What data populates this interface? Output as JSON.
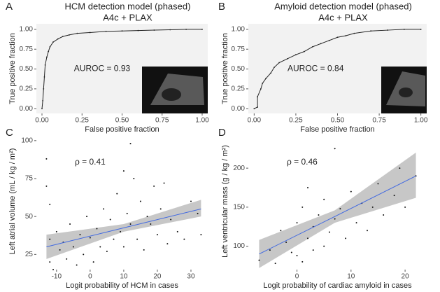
{
  "chart_data": [
    {
      "type": "line",
      "panel_label": "A",
      "title": "HCM detection model (phased)",
      "subtitle": "A4c + PLAX",
      "annotation": "AUROC = 0.93",
      "x_label": "False positive fraction",
      "y_label": "True positive fraction",
      "color": "#222222",
      "xlim": [
        -0.035,
        1.035
      ],
      "ylim": [
        -0.06,
        1.07
      ],
      "xticks": [
        {
          "value": 0,
          "label": "0.00"
        },
        {
          "value": 0.25,
          "label": "0.25"
        },
        {
          "value": 0.5,
          "label": "0.50"
        },
        {
          "value": 0.75,
          "label": "0.75"
        },
        {
          "value": 1,
          "label": "1.00"
        }
      ],
      "yticks": [
        {
          "value": 0,
          "label": "0.00"
        },
        {
          "value": 0.25,
          "label": "0.25"
        },
        {
          "value": 0.5,
          "label": "0.50"
        },
        {
          "value": 0.75,
          "label": "0.75"
        },
        {
          "value": 1,
          "label": "1.00"
        }
      ],
      "x": [
        0,
        0.005,
        0.01,
        0.015,
        0.02,
        0.03,
        0.04,
        0.05,
        0.07,
        0.1,
        0.13,
        0.17,
        0.22,
        0.3,
        0.4,
        0.5,
        0.6,
        0.7,
        0.8,
        0.9,
        1.0
      ],
      "values": [
        0,
        0.1,
        0.25,
        0.4,
        0.55,
        0.65,
        0.72,
        0.78,
        0.84,
        0.88,
        0.91,
        0.93,
        0.95,
        0.96,
        0.975,
        0.98,
        0.985,
        0.99,
        0.995,
        1,
        1
      ]
    },
    {
      "type": "line",
      "panel_label": "B",
      "title": "Amyloid detection model (phased)",
      "subtitle": "A4c + PLAX",
      "annotation": "AUROC = 0.84",
      "x_label": "False positive fraction",
      "y_label": "True positive fraction",
      "color": "#222222",
      "xlim": [
        -0.035,
        1.035
      ],
      "ylim": [
        -0.06,
        1.07
      ],
      "xticks": [
        {
          "value": 0,
          "label": "0.00"
        },
        {
          "value": 0.25,
          "label": "0.25"
        },
        {
          "value": 0.5,
          "label": "0.50"
        },
        {
          "value": 0.75,
          "label": "0.75"
        },
        {
          "value": 1,
          "label": "1.00"
        }
      ],
      "yticks": [
        {
          "value": 0,
          "label": "0.00"
        },
        {
          "value": 0.25,
          "label": "0.25"
        },
        {
          "value": 0.5,
          "label": "0.50"
        },
        {
          "value": 0.75,
          "label": "0.75"
        },
        {
          "value": 1,
          "label": "1.00"
        }
      ],
      "x": [
        0,
        0.02,
        0.02,
        0.04,
        0.05,
        0.07,
        0.1,
        0.12,
        0.15,
        0.2,
        0.25,
        0.3,
        0.35,
        0.4,
        0.45,
        0.5,
        0.55,
        0.6,
        0.7,
        0.8,
        0.9,
        1.0
      ],
      "values": [
        0,
        0.02,
        0.15,
        0.25,
        0.32,
        0.38,
        0.45,
        0.52,
        0.58,
        0.63,
        0.68,
        0.72,
        0.78,
        0.82,
        0.86,
        0.9,
        0.92,
        0.95,
        0.98,
        0.99,
        1,
        1
      ]
    },
    {
      "type": "scatter",
      "panel_label": "C",
      "annotation": "ρ = 0.41",
      "x_label": "Logit probability of HCM in cases",
      "y_label": "Left atrial volume (mL / kg / m²)",
      "color": "#111111",
      "fit_color": "#4169e1",
      "band_color": "#bdbdbd",
      "xlim": [
        -16,
        35
      ],
      "ylim": [
        15,
        105
      ],
      "xticks": [
        -10,
        0,
        10,
        20,
        30
      ],
      "yticks": [
        25,
        50,
        75,
        100
      ],
      "x": [
        -13,
        -13,
        -12,
        -12,
        -12,
        -11,
        -10,
        -9,
        -8,
        -7,
        -6,
        -5,
        -4,
        -3,
        -2,
        -1,
        0,
        1,
        2,
        3,
        4,
        5,
        6,
        7,
        8,
        9,
        10,
        10,
        11,
        12,
        12,
        13,
        14,
        15,
        16,
        17,
        18,
        19,
        20,
        21,
        22,
        23,
        24,
        26,
        28,
        30,
        32,
        33
      ],
      "values": [
        88,
        70,
        58,
        35,
        20,
        15,
        40,
        28,
        33,
        22,
        45,
        30,
        18,
        38,
        25,
        50,
        36,
        20,
        42,
        30,
        55,
        27,
        48,
        35,
        65,
        40,
        80,
        30,
        52,
        45,
        98,
        75,
        35,
        60,
        28,
        50,
        45,
        70,
        38,
        55,
        72,
        32,
        48,
        40,
        35,
        60,
        52,
        38
      ],
      "fit": {
        "x": [
          -13,
          10,
          33
        ],
        "y": [
          30,
          42.5,
          55
        ],
        "upper": [
          38,
          45,
          61
        ],
        "lower": [
          22,
          40,
          50
        ]
      }
    },
    {
      "type": "scatter",
      "panel_label": "D",
      "annotation": "ρ = 0.46",
      "x_label": "Logit probability of cardiac amyloid in cases",
      "y_label": "Left ventricular mass (g / kg / m²)",
      "color": "#111111",
      "fit_color": "#4169e1",
      "band_color": "#bdbdbd",
      "xlim": [
        -9,
        24
      ],
      "ylim": [
        70,
        245
      ],
      "xticks": [
        0,
        10,
        20
      ],
      "yticks": [
        100,
        150,
        200
      ],
      "x": [
        -7,
        -5,
        -4,
        -3,
        -2,
        -1,
        0,
        0,
        1,
        1,
        2,
        2,
        3,
        3,
        4,
        5,
        5,
        6,
        7,
        7,
        8,
        9,
        10,
        11,
        12,
        13,
        14,
        15,
        16,
        18,
        19,
        20,
        22
      ],
      "values": [
        82,
        95,
        78,
        120,
        105,
        92,
        88,
        130,
        150,
        80,
        110,
        175,
        125,
        95,
        140,
        100,
        160,
        118,
        225,
        135,
        148,
        110,
        170,
        130,
        155,
        120,
        150,
        180,
        140,
        165,
        200,
        150,
        190
      ],
      "fit": {
        "x": [
          -7,
          7,
          22
        ],
        "y": [
          90,
          138,
          190
        ],
        "upper": [
          108,
          146,
          220
        ],
        "lower": [
          72,
          130,
          162
        ]
      }
    }
  ]
}
